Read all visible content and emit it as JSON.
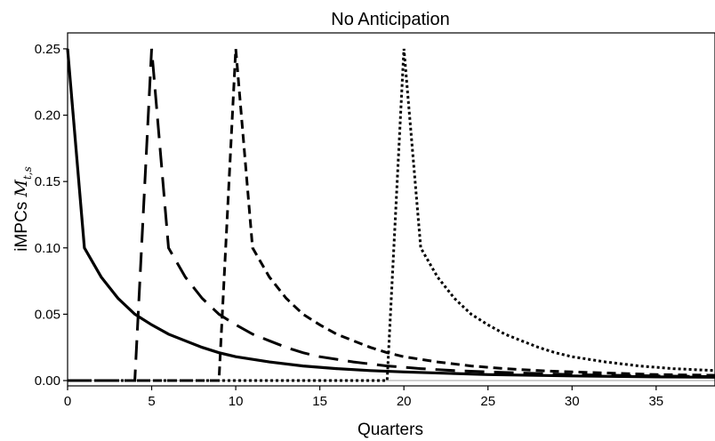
{
  "chart_data": {
    "type": "line",
    "title": "No Anticipation",
    "xlabel": "Quarters",
    "ylabel_prefix": "iMPCs ",
    "ylabel_math": "M",
    "ylabel_math_sub": "t,s",
    "xlim": [
      0,
      38.5
    ],
    "ylim": [
      -0.004,
      0.262
    ],
    "xticks": [
      0,
      5,
      10,
      15,
      20,
      25,
      30,
      35
    ],
    "xtick_labels": [
      "0",
      "5",
      "10",
      "15",
      "20",
      "25",
      "30",
      "35"
    ],
    "yticks": [
      0.0,
      0.05,
      0.1,
      0.15,
      0.2,
      0.25
    ],
    "ytick_labels": [
      "0.00",
      "0.05",
      "0.10",
      "0.15",
      "0.20",
      "0.25"
    ],
    "reference_line_y": 0.0,
    "series": [
      {
        "style": "solid",
        "points": [
          [
            0,
            0.25
          ],
          [
            1,
            0.1
          ],
          [
            2,
            0.078
          ],
          [
            3,
            0.062
          ],
          [
            4,
            0.05
          ],
          [
            5,
            0.042
          ],
          [
            6,
            0.035
          ],
          [
            7,
            0.03
          ],
          [
            8,
            0.025
          ],
          [
            9,
            0.021
          ],
          [
            10,
            0.018
          ],
          [
            12,
            0.014
          ],
          [
            14,
            0.011
          ],
          [
            16,
            0.009
          ],
          [
            18,
            0.0075
          ],
          [
            20,
            0.0065
          ],
          [
            25,
            0.0045
          ],
          [
            30,
            0.0035
          ],
          [
            35,
            0.0028
          ],
          [
            38.5,
            0.0025
          ]
        ]
      },
      {
        "style": "long-dash",
        "points": [
          [
            0,
            0
          ],
          [
            4,
            0
          ],
          [
            5,
            0.25
          ],
          [
            6,
            0.1
          ],
          [
            7,
            0.078
          ],
          [
            8,
            0.062
          ],
          [
            9,
            0.05
          ],
          [
            10,
            0.042
          ],
          [
            11,
            0.035
          ],
          [
            12,
            0.03
          ],
          [
            13,
            0.025
          ],
          [
            14,
            0.021
          ],
          [
            15,
            0.018
          ],
          [
            17,
            0.014
          ],
          [
            19,
            0.011
          ],
          [
            21,
            0.009
          ],
          [
            23,
            0.0075
          ],
          [
            25,
            0.0065
          ],
          [
            30,
            0.0045
          ],
          [
            35,
            0.0035
          ],
          [
            38.5,
            0.003
          ]
        ]
      },
      {
        "style": "dash",
        "points": [
          [
            0,
            0
          ],
          [
            9,
            0
          ],
          [
            10,
            0.25
          ],
          [
            11,
            0.1
          ],
          [
            12,
            0.078
          ],
          [
            13,
            0.062
          ],
          [
            14,
            0.05
          ],
          [
            15,
            0.042
          ],
          [
            16,
            0.035
          ],
          [
            17,
            0.03
          ],
          [
            18,
            0.025
          ],
          [
            19,
            0.021
          ],
          [
            20,
            0.018
          ],
          [
            22,
            0.014
          ],
          [
            24,
            0.011
          ],
          [
            26,
            0.009
          ],
          [
            28,
            0.0075
          ],
          [
            30,
            0.0065
          ],
          [
            35,
            0.0045
          ],
          [
            38.5,
            0.004
          ]
        ]
      },
      {
        "style": "dotted",
        "points": [
          [
            0,
            0
          ],
          [
            19,
            0
          ],
          [
            20,
            0.25
          ],
          [
            21,
            0.1
          ],
          [
            22,
            0.078
          ],
          [
            23,
            0.062
          ],
          [
            24,
            0.05
          ],
          [
            25,
            0.042
          ],
          [
            26,
            0.035
          ],
          [
            27,
            0.03
          ],
          [
            28,
            0.025
          ],
          [
            29,
            0.021
          ],
          [
            30,
            0.018
          ],
          [
            32,
            0.014
          ],
          [
            34,
            0.011
          ],
          [
            36,
            0.009
          ],
          [
            38.5,
            0.0075
          ]
        ]
      }
    ]
  }
}
